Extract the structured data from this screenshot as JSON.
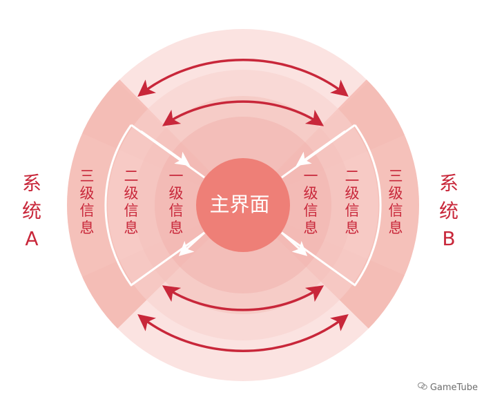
{
  "center": {
    "label": "主界面"
  },
  "system_a": {
    "chars": [
      "系",
      "统",
      "A"
    ]
  },
  "system_b": {
    "chars": [
      "系",
      "统",
      "B"
    ]
  },
  "levels": {
    "level1": [
      "一",
      "级",
      "信",
      "息"
    ],
    "level2": [
      "二",
      "级",
      "信",
      "息"
    ],
    "level3": [
      "三",
      "级",
      "信",
      "息"
    ]
  },
  "watermark": {
    "icon": "wechat-icon",
    "text": "GameTube"
  },
  "colors": {
    "accent": "#c8273a",
    "ring_outer": "#fbe3e1",
    "ring_2": "#f8d2ce",
    "ring_3": "#f4c1bc",
    "ring_4": "#f1b3ad",
    "center": "#ee7f77",
    "wedge": "#f2b1ab"
  }
}
